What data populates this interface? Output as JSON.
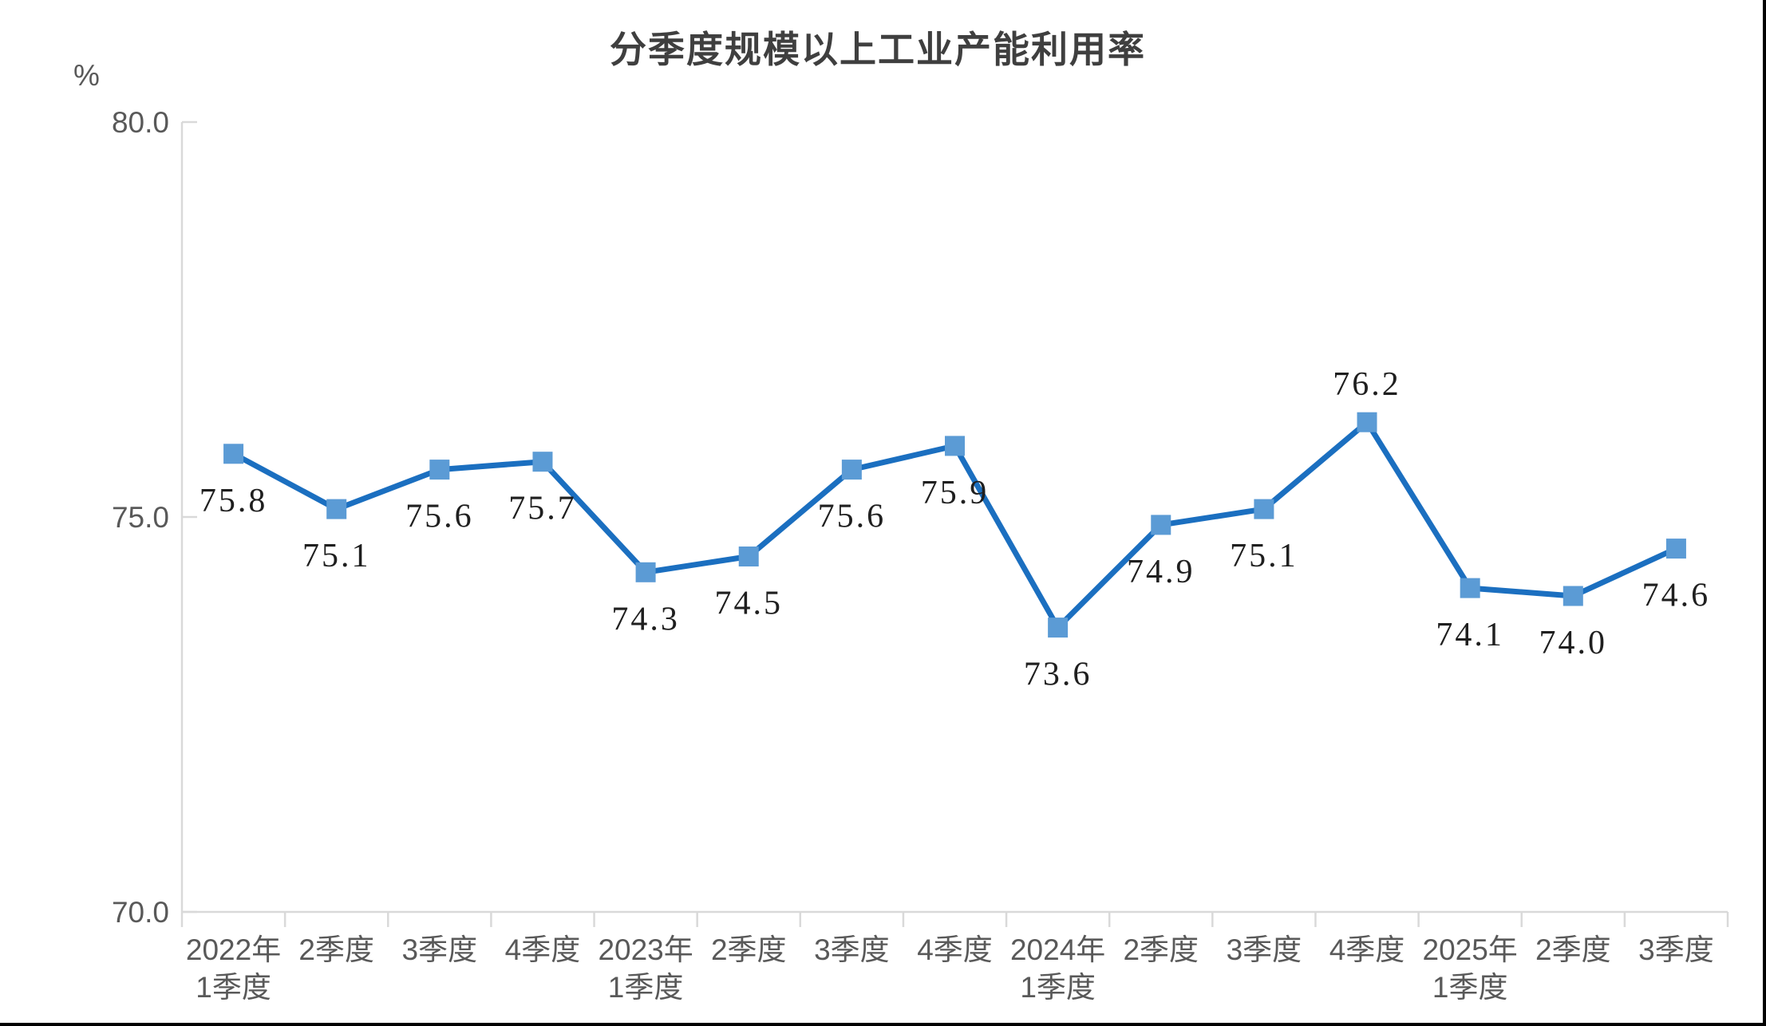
{
  "window": {
    "border_color": "#000000",
    "background": "#ffffff"
  },
  "chart_data": {
    "type": "line",
    "title": "分季度规模以上工业产能利用率",
    "unit": "%",
    "ylim": [
      70,
      80
    ],
    "grid": false,
    "legend": "none",
    "marker_shape": "square",
    "y_axis": {
      "ticks": [
        {
          "label": "80.0",
          "value": 80
        },
        {
          "label": "75.0",
          "value": 75
        },
        {
          "label": "70.0",
          "value": 70
        }
      ]
    },
    "points": [
      {
        "category_lines": [
          "2022年",
          "1季度"
        ],
        "value": 75.8,
        "label": "75.8",
        "label_pos": "below"
      },
      {
        "category_lines": [
          "2季度"
        ],
        "value": 75.1,
        "label": "75.1",
        "label_pos": "below"
      },
      {
        "category_lines": [
          "3季度"
        ],
        "value": 75.6,
        "label": "75.6",
        "label_pos": "below"
      },
      {
        "category_lines": [
          "4季度"
        ],
        "value": 75.7,
        "label": "75.7",
        "label_pos": "below"
      },
      {
        "category_lines": [
          "2023年",
          "1季度"
        ],
        "value": 74.3,
        "label": "74.3",
        "label_pos": "below"
      },
      {
        "category_lines": [
          "2季度"
        ],
        "value": 74.5,
        "label": "74.5",
        "label_pos": "below"
      },
      {
        "category_lines": [
          "3季度"
        ],
        "value": 75.6,
        "label": "75.6",
        "label_pos": "below"
      },
      {
        "category_lines": [
          "4季度"
        ],
        "value": 75.9,
        "label": "75.9",
        "label_pos": "below"
      },
      {
        "category_lines": [
          "2024年",
          "1季度"
        ],
        "value": 73.6,
        "label": "73.6",
        "label_pos": "below"
      },
      {
        "category_lines": [
          "2季度"
        ],
        "value": 74.9,
        "label": "74.9",
        "label_pos": "below"
      },
      {
        "category_lines": [
          "3季度"
        ],
        "value": 75.1,
        "label": "75.1",
        "label_pos": "below"
      },
      {
        "category_lines": [
          "4季度"
        ],
        "value": 76.2,
        "label": "76.2",
        "label_pos": "above"
      },
      {
        "category_lines": [
          "2025年",
          "1季度"
        ],
        "value": 74.1,
        "label": "74.1",
        "label_pos": "below"
      },
      {
        "category_lines": [
          "2季度"
        ],
        "value": 74.0,
        "label": "74.0",
        "label_pos": "below"
      },
      {
        "category_lines": [
          "3季度"
        ],
        "value": 74.6,
        "label": "74.6",
        "label_pos": "below"
      }
    ],
    "colors": {
      "line": "#1b6fc0",
      "marker": "#5b9bd5",
      "axis": "#d9d9d9",
      "tick_label": "#595959",
      "title": "#3f3f3f",
      "data_label": "#1f1f1f"
    }
  }
}
